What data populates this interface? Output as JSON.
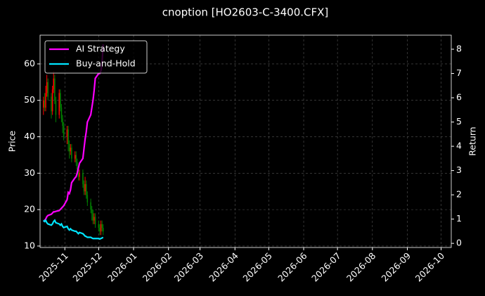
{
  "chart_data": {
    "type": "candlestick",
    "title": "cnoption [HO2603-C-3400.CFX]",
    "y_label": "Price",
    "y2_label": "Return",
    "x": [
      3,
      4,
      5,
      6,
      7,
      10,
      11,
      12,
      13,
      14,
      17,
      18,
      19,
      20,
      21,
      24,
      25,
      26,
      27,
      28,
      31,
      32,
      33,
      34,
      35,
      38,
      39,
      40,
      41,
      42,
      45,
      46,
      47,
      48,
      49,
      52,
      53,
      54,
      55,
      56
    ],
    "open": [
      48,
      50,
      48,
      52,
      55,
      51,
      47,
      53,
      56,
      50,
      46,
      52,
      48,
      45,
      43,
      40,
      42,
      38,
      36,
      37,
      34,
      35,
      33,
      31,
      29,
      30,
      27,
      25,
      27,
      24,
      22,
      20,
      19,
      17,
      18,
      16,
      15,
      14,
      16,
      15
    ],
    "high": [
      51,
      52,
      54,
      57,
      56,
      52,
      54,
      58,
      57,
      51,
      53,
      53,
      49,
      46,
      44,
      43,
      43,
      39,
      38,
      38,
      36,
      36,
      34,
      32,
      31,
      31,
      28,
      29,
      28,
      25,
      23,
      21,
      20,
      19,
      19,
      17,
      16,
      17,
      17,
      16
    ],
    "low": [
      46,
      47,
      47,
      51,
      50,
      45,
      46,
      52,
      49,
      44,
      45,
      47,
      44,
      41,
      39,
      38,
      36,
      34,
      35,
      33,
      33,
      32,
      30,
      28,
      28,
      26,
      24,
      24,
      23,
      21,
      19,
      17,
      16,
      16,
      15,
      14,
      13,
      13,
      14,
      13
    ],
    "close": [
      50,
      48,
      52,
      55,
      51,
      47,
      53,
      56,
      50,
      46,
      52,
      48,
      45,
      43,
      40,
      42,
      38,
      36,
      37,
      34,
      35,
      33,
      31,
      29,
      30,
      27,
      25,
      27,
      24,
      22,
      20,
      19,
      17,
      18,
      16,
      15,
      14,
      16,
      15,
      14
    ],
    "up_color": "#ff0000",
    "down_color": "#008000",
    "series": [
      {
        "name": "AI Strategy",
        "color": "#ff00ff",
        "axis": "y2",
        "values": [
          0.9,
          0.95,
          1.0,
          1.1,
          1.15,
          1.2,
          1.25,
          1.3,
          1.3,
          1.32,
          1.35,
          1.4,
          1.45,
          1.5,
          1.55,
          1.8,
          2.1,
          2.05,
          2.2,
          2.5,
          2.7,
          2.75,
          2.9,
          3.1,
          3.3,
          3.5,
          3.9,
          4.3,
          4.6,
          5.0,
          5.3,
          5.6,
          5.9,
          6.3,
          6.8,
          7.0,
          7.0,
          7.1,
          7.4,
          8.2
        ]
      },
      {
        "name": "Buy-and-Hold",
        "color": "#00e5ff",
        "axis": "y2",
        "values": [
          0.95,
          0.9,
          0.95,
          0.85,
          0.8,
          0.75,
          0.8,
          0.9,
          0.95,
          0.85,
          0.8,
          0.75,
          0.8,
          0.7,
          0.65,
          0.7,
          0.6,
          0.55,
          0.6,
          0.55,
          0.5,
          0.5,
          0.45,
          0.4,
          0.45,
          0.4,
          0.35,
          0.3,
          0.28,
          0.25,
          0.25,
          0.22,
          0.2,
          0.2,
          0.2,
          0.2,
          0.18,
          0.2,
          0.22,
          0.25
        ]
      }
    ],
    "xlim": [
      0,
      365
    ],
    "xticks": [
      {
        "value": 22,
        "label": "2025-11"
      },
      {
        "value": 52,
        "label": "2025-12"
      },
      {
        "value": 83,
        "label": "2026-01"
      },
      {
        "value": 114,
        "label": "2026-02"
      },
      {
        "value": 142,
        "label": "2026-03"
      },
      {
        "value": 173,
        "label": "2026-04"
      },
      {
        "value": 203,
        "label": "2026-05"
      },
      {
        "value": 234,
        "label": "2026-06"
      },
      {
        "value": 264,
        "label": "2026-07"
      },
      {
        "value": 295,
        "label": "2026-08"
      },
      {
        "value": 326,
        "label": "2026-09"
      },
      {
        "value": 356,
        "label": "2026-10"
      }
    ],
    "ylim": [
      9.6,
      67.9
    ],
    "yticks": [
      10,
      20,
      30,
      40,
      50,
      60
    ],
    "y2lim": [
      -0.17,
      8.58
    ],
    "y2ticks": [
      0,
      1,
      2,
      3,
      4,
      5,
      6,
      7,
      8
    ],
    "grid": true,
    "legend": "upper left"
  }
}
